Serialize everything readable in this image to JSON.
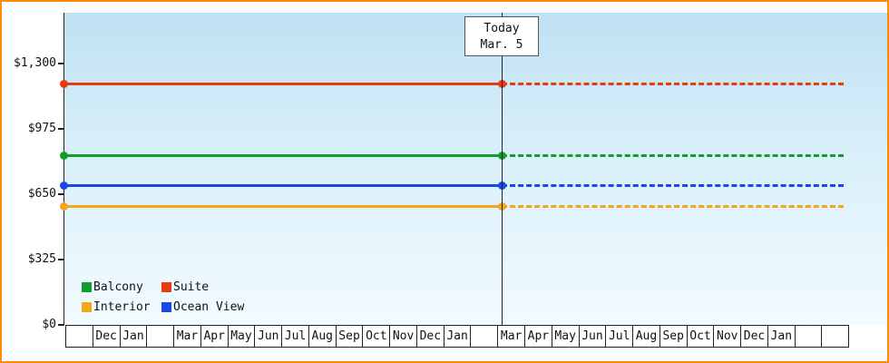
{
  "frame": {
    "border_color": "#ff8c00"
  },
  "today_marker": {
    "line1": "Today",
    "line2": "Mar. 5"
  },
  "legend": {
    "items": [
      {
        "label": "Balcony",
        "color": "#0f9f2a"
      },
      {
        "label": "Suite",
        "color": "#ea3a10"
      },
      {
        "label": "Interior",
        "color": "#f3a61c"
      },
      {
        "label": "Ocean View",
        "color": "#1947ea"
      }
    ]
  },
  "chart_data": {
    "type": "line",
    "title": "",
    "today_label": "Mar. 5",
    "ylim": [
      0,
      1300
    ],
    "y_ticks": [
      {
        "value": 0,
        "label": "$0"
      },
      {
        "value": 325,
        "label": "$325"
      },
      {
        "value": 650,
        "label": "$650"
      },
      {
        "value": 975,
        "label": "$975"
      },
      {
        "value": 1300,
        "label": "$1,300"
      }
    ],
    "x_months": [
      "",
      "Dec",
      "Jan",
      "",
      "Mar",
      "Apr",
      "May",
      "Jun",
      "Jul",
      "Aug",
      "Sep",
      "Oct",
      "Nov",
      "Dec",
      "Jan",
      "",
      "Mar",
      "Apr",
      "May",
      "Jun",
      "Jul",
      "Aug",
      "Sep",
      "Oct",
      "Nov",
      "Dec",
      "Jan",
      "",
      ""
    ],
    "series": [
      {
        "name": "Suite",
        "color": "#ea3a10",
        "value": 1200,
        "style": "solid-before-today-dashed-after"
      },
      {
        "name": "Balcony",
        "color": "#0f9f2a",
        "value": 840,
        "style": "solid-before-today-dashed-after"
      },
      {
        "name": "Ocean View",
        "color": "#1947ea",
        "value": 695,
        "style": "solid-before-today-dashed-after"
      },
      {
        "name": "Interior",
        "color": "#f3a61c",
        "value": 590,
        "style": "solid-before-today-dashed-after"
      }
    ],
    "legend_position": "bottom-left-inside",
    "grid": false,
    "notes_layout": "flat horizontal price lines with round markers at axis and at today line"
  }
}
